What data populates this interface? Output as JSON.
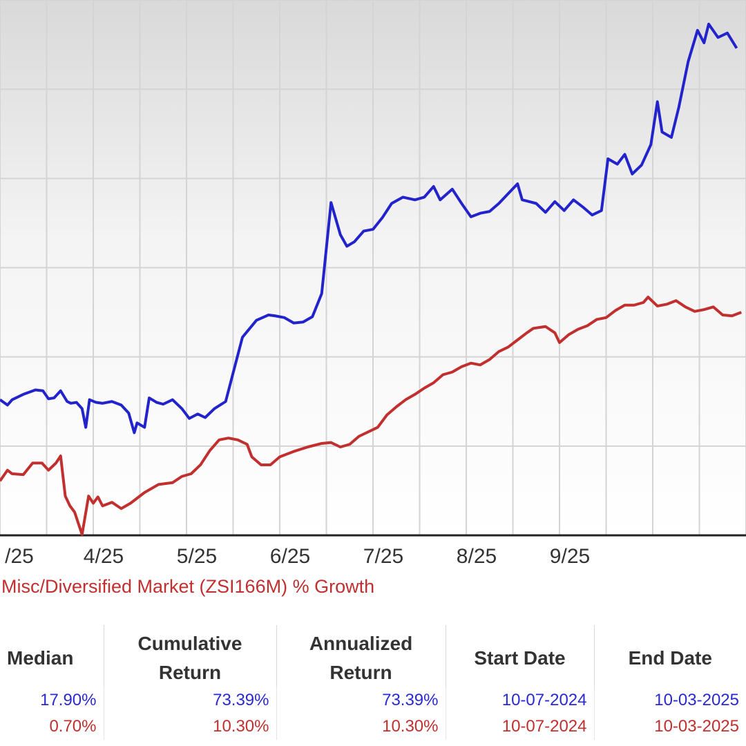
{
  "chart_data": {
    "type": "line",
    "xlabel": "",
    "ylabel": "",
    "x_tick_labels": [
      "/25",
      "4/25",
      "5/25",
      "6/25",
      "7/25",
      "8/25",
      "9/25"
    ],
    "grid": true,
    "series": [
      {
        "name": "",
        "color": "#2323cc",
        "values": [
          [
            0.0,
            5.2
          ],
          [
            0.08,
            4.6
          ],
          [
            0.13,
            5.2
          ],
          [
            0.25,
            5.8
          ],
          [
            0.38,
            6.3
          ],
          [
            0.46,
            6.2
          ],
          [
            0.52,
            5.3
          ],
          [
            0.58,
            5.4
          ],
          [
            0.65,
            6.2
          ],
          [
            0.72,
            5.0
          ],
          [
            0.76,
            4.8
          ],
          [
            0.82,
            4.9
          ],
          [
            0.88,
            4.2
          ],
          [
            0.92,
            2.1
          ],
          [
            0.96,
            5.2
          ],
          [
            1.03,
            4.9
          ],
          [
            1.1,
            4.8
          ],
          [
            1.2,
            5.0
          ],
          [
            1.3,
            4.6
          ],
          [
            1.38,
            3.7
          ],
          [
            1.44,
            1.5
          ],
          [
            1.47,
            2.6
          ],
          [
            1.55,
            2.1
          ],
          [
            1.6,
            5.4
          ],
          [
            1.68,
            4.9
          ],
          [
            1.75,
            4.7
          ],
          [
            1.85,
            5.2
          ],
          [
            1.95,
            4.2
          ],
          [
            2.03,
            3.1
          ],
          [
            2.12,
            3.6
          ],
          [
            2.2,
            3.2
          ],
          [
            2.3,
            4.2
          ],
          [
            2.42,
            5.0
          ],
          [
            2.5,
            8.2
          ],
          [
            2.6,
            12.2
          ],
          [
            2.75,
            14.1
          ],
          [
            2.88,
            14.7
          ],
          [
            2.95,
            14.6
          ],
          [
            3.05,
            14.4
          ],
          [
            3.15,
            13.8
          ],
          [
            3.25,
            13.9
          ],
          [
            3.35,
            14.5
          ],
          [
            3.45,
            17.1
          ],
          [
            3.55,
            27.3
          ],
          [
            3.65,
            23.7
          ],
          [
            3.72,
            22.4
          ],
          [
            3.8,
            22.9
          ],
          [
            3.9,
            24.1
          ],
          [
            4.0,
            24.3
          ],
          [
            4.1,
            25.6
          ],
          [
            4.2,
            27.2
          ],
          [
            4.32,
            27.9
          ],
          [
            4.45,
            27.6
          ],
          [
            4.55,
            27.9
          ],
          [
            4.65,
            29.1
          ],
          [
            4.72,
            27.6
          ],
          [
            4.85,
            28.8
          ],
          [
            4.95,
            27.2
          ],
          [
            5.05,
            25.7
          ],
          [
            5.15,
            26.1
          ],
          [
            5.25,
            26.3
          ],
          [
            5.35,
            27.2
          ],
          [
            5.45,
            28.3
          ],
          [
            5.55,
            29.4
          ],
          [
            5.6,
            27.6
          ],
          [
            5.75,
            27.2
          ],
          [
            5.85,
            26.2
          ],
          [
            5.95,
            27.4
          ],
          [
            6.05,
            26.4
          ],
          [
            6.15,
            27.6
          ],
          [
            6.25,
            26.8
          ],
          [
            6.35,
            25.9
          ],
          [
            6.45,
            26.4
          ],
          [
            6.52,
            32.2
          ],
          [
            6.62,
            31.6
          ],
          [
            6.7,
            32.7
          ],
          [
            6.78,
            30.5
          ],
          [
            6.88,
            31.5
          ],
          [
            6.98,
            33.8
          ],
          [
            7.05,
            38.6
          ],
          [
            7.1,
            35.2
          ],
          [
            7.2,
            34.6
          ],
          [
            7.28,
            38.0
          ],
          [
            7.38,
            43.1
          ],
          [
            7.48,
            46.6
          ],
          [
            7.55,
            45.2
          ],
          [
            7.6,
            47.3
          ],
          [
            7.7,
            45.8
          ],
          [
            7.8,
            46.3
          ],
          [
            7.9,
            44.6
          ]
        ]
      },
      {
        "name": "Misc/Diversified Market (ZSI166M) % Growth",
        "color": "#c12f2f",
        "values": [
          [
            0.0,
            -3.9
          ],
          [
            0.08,
            -2.7
          ],
          [
            0.13,
            -3.1
          ],
          [
            0.25,
            -3.2
          ],
          [
            0.35,
            -1.9
          ],
          [
            0.45,
            -1.9
          ],
          [
            0.52,
            -2.7
          ],
          [
            0.6,
            -1.9
          ],
          [
            0.65,
            -1.1
          ],
          [
            0.7,
            -5.6
          ],
          [
            0.75,
            -6.7
          ],
          [
            0.8,
            -7.4
          ],
          [
            0.88,
            -9.9
          ],
          [
            0.95,
            -5.6
          ],
          [
            1.0,
            -6.4
          ],
          [
            1.05,
            -5.7
          ],
          [
            1.1,
            -6.7
          ],
          [
            1.2,
            -6.3
          ],
          [
            1.3,
            -7.0
          ],
          [
            1.4,
            -6.4
          ],
          [
            1.55,
            -5.2
          ],
          [
            1.7,
            -4.3
          ],
          [
            1.85,
            -4.1
          ],
          [
            1.95,
            -3.4
          ],
          [
            2.05,
            -3.1
          ],
          [
            2.15,
            -2.1
          ],
          [
            2.25,
            -0.5
          ],
          [
            2.35,
            0.7
          ],
          [
            2.45,
            0.9
          ],
          [
            2.55,
            0.7
          ],
          [
            2.65,
            0.2
          ],
          [
            2.7,
            -1.2
          ],
          [
            2.8,
            -2.1
          ],
          [
            2.9,
            -2.1
          ],
          [
            3.0,
            -1.2
          ],
          [
            3.15,
            -0.6
          ],
          [
            3.3,
            -0.1
          ],
          [
            3.45,
            0.3
          ],
          [
            3.55,
            0.4
          ],
          [
            3.65,
            -0.1
          ],
          [
            3.75,
            0.2
          ],
          [
            3.85,
            1.1
          ],
          [
            3.95,
            1.6
          ],
          [
            4.05,
            2.1
          ],
          [
            4.15,
            3.5
          ],
          [
            4.25,
            4.4
          ],
          [
            4.35,
            5.2
          ],
          [
            4.45,
            5.8
          ],
          [
            4.55,
            6.5
          ],
          [
            4.65,
            7.1
          ],
          [
            4.75,
            8.0
          ],
          [
            4.85,
            8.3
          ],
          [
            4.95,
            8.9
          ],
          [
            5.05,
            9.3
          ],
          [
            5.15,
            9.1
          ],
          [
            5.25,
            9.7
          ],
          [
            5.35,
            10.6
          ],
          [
            5.45,
            11.1
          ],
          [
            5.55,
            11.9
          ],
          [
            5.65,
            12.7
          ],
          [
            5.72,
            13.2
          ],
          [
            5.85,
            13.4
          ],
          [
            5.95,
            12.7
          ],
          [
            6.0,
            11.6
          ],
          [
            6.1,
            12.5
          ],
          [
            6.2,
            13.1
          ],
          [
            6.3,
            13.5
          ],
          [
            6.4,
            14.2
          ],
          [
            6.5,
            14.4
          ],
          [
            6.6,
            15.2
          ],
          [
            6.7,
            15.8
          ],
          [
            6.8,
            15.8
          ],
          [
            6.9,
            16.1
          ],
          [
            6.95,
            16.7
          ],
          [
            7.05,
            15.7
          ],
          [
            7.15,
            15.9
          ],
          [
            7.25,
            16.3
          ],
          [
            7.35,
            15.6
          ],
          [
            7.45,
            15.1
          ],
          [
            7.55,
            15.3
          ],
          [
            7.65,
            15.6
          ],
          [
            7.75,
            14.7
          ],
          [
            7.85,
            14.6
          ],
          [
            7.95,
            15.0
          ]
        ]
      }
    ],
    "x_range": [
      0,
      8.0
    ],
    "y_range": [
      -10,
      50
    ]
  },
  "legend": {
    "red_label": "Misc/Diversified Market (ZSI166M) % Growth"
  },
  "stats_table": {
    "headers": [
      "Median",
      "Cumulative\nReturn",
      "Annualized\nReturn",
      "Start Date",
      "End Date"
    ],
    "rows": [
      {
        "color": "#2a2ad0",
        "cells": [
          "17.90%",
          "73.39%",
          "73.39%",
          "10-07-2024",
          "10-03-2025"
        ]
      },
      {
        "color": "#c12f2f",
        "cells": [
          "0.70%",
          "10.30%",
          "10.30%",
          "10-07-2024",
          "10-03-2025"
        ]
      }
    ]
  }
}
